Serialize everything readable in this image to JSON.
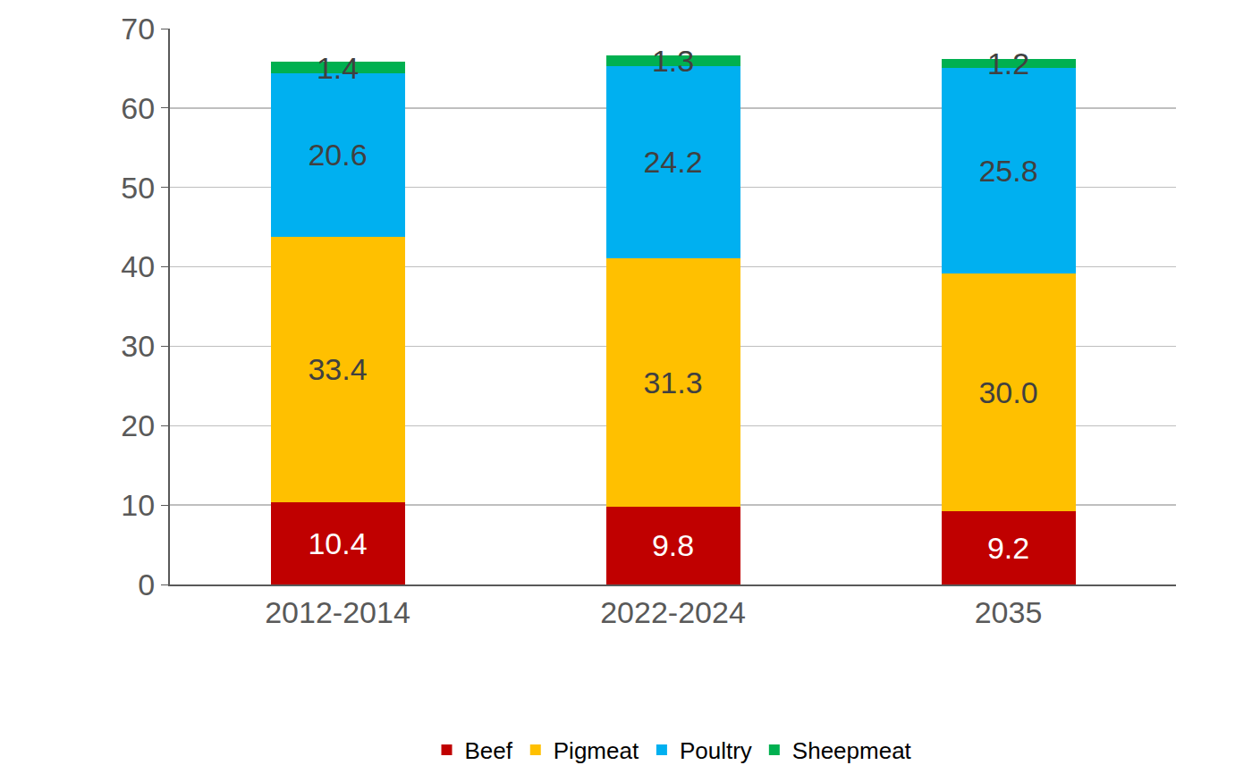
{
  "chart_data": {
    "type": "bar",
    "stacked": true,
    "data_labels": true,
    "grid": true,
    "legend": "bottom",
    "categories": [
      "2012-2014",
      "2022-2024",
      "2035"
    ],
    "series": [
      {
        "name": "Beef",
        "color": "#c00000",
        "values": [
          10.4,
          9.8,
          9.2
        ]
      },
      {
        "name": "Pigmeat",
        "color": "#ffc000",
        "values": [
          33.4,
          31.3,
          30.0
        ],
        "value_labels": [
          "33.4",
          "31.3",
          "30.0"
        ]
      },
      {
        "name": "Poultry",
        "color": "#00b0f0",
        "values": [
          20.6,
          24.2,
          25.8
        ]
      },
      {
        "name": "Sheepmeat",
        "color": "#00b050",
        "values": [
          1.4,
          1.3,
          1.2
        ]
      }
    ],
    "ylim": [
      0,
      70
    ],
    "yticks": [
      0,
      10,
      20,
      30,
      40,
      50,
      60,
      70
    ]
  }
}
